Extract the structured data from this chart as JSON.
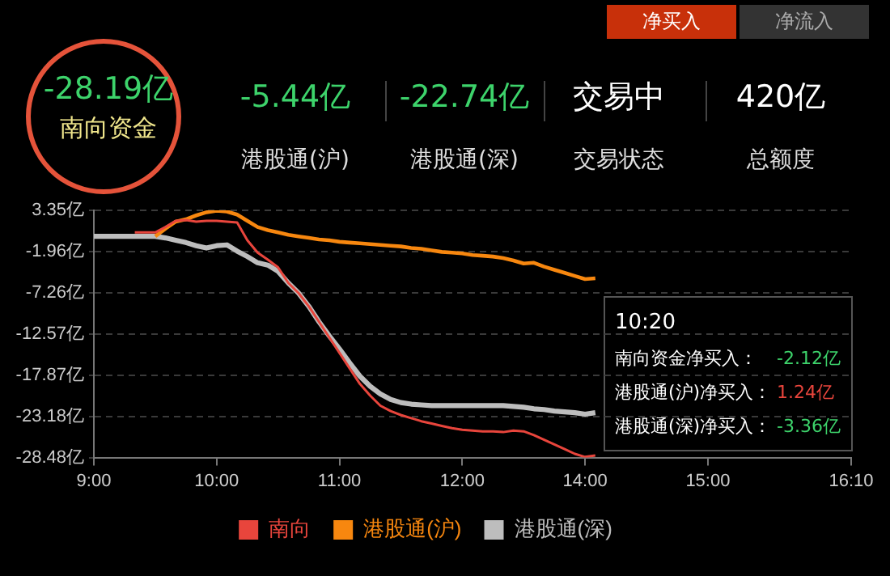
{
  "chart_data": {
    "type": "line",
    "categories": [
      "9:00",
      null,
      null,
      null,
      null,
      null,
      null,
      null,
      null,
      null,
      null,
      null,
      "10:00",
      null,
      null,
      null,
      null,
      null,
      null,
      null,
      null,
      null,
      null,
      null,
      "11:00",
      null,
      null,
      null,
      null,
      null,
      null,
      null,
      null,
      null,
      null,
      null,
      "12:00",
      null,
      null,
      null,
      null,
      null,
      null,
      null,
      null,
      null,
      null,
      null,
      "14:00",
      null,
      null,
      null,
      null,
      null,
      null,
      null,
      null,
      null,
      null,
      null,
      "15:00",
      null,
      null,
      null,
      null,
      null,
      null,
      null,
      null,
      null,
      null,
      null,
      null,
      null,
      "16:10"
    ],
    "series": [
      {
        "name": "南向",
        "color": "#e8453c",
        "values": [
          null,
          null,
          null,
          null,
          0.5,
          0.5,
          0.5,
          1.2,
          2.0,
          2.1,
          1.9,
          2.0,
          2.0,
          1.9,
          1.8,
          -0.5,
          -2.1,
          -3.0,
          -4.0,
          -6.0,
          -7.3,
          -9,
          -11,
          -13,
          -15,
          -17,
          -19,
          -20.5,
          -21.8,
          -22.5,
          -23.0,
          -23.4,
          -23.8,
          -24.1,
          -24.4,
          -24.7,
          -24.9,
          -25.0,
          -25.1,
          -25.1,
          -25.2,
          -25.0,
          -25.1,
          -25.6,
          -26.2,
          -26.8,
          -27.4,
          -28.0,
          -28.4,
          -28.2,
          null,
          null,
          null,
          null,
          null,
          null,
          null,
          null,
          null,
          null,
          null,
          null,
          null,
          null,
          null,
          null,
          null,
          null,
          null,
          null,
          null,
          null,
          null,
          null,
          null
        ]
      },
      {
        "name": "港股通(沪)",
        "color": "#f7870f",
        "values": [
          null,
          null,
          null,
          null,
          null,
          null,
          0,
          1.0,
          1.9,
          2.2,
          2.7,
          3.1,
          3.3,
          3.2,
          2.8,
          2.0,
          1.2,
          0.8,
          0.5,
          0.2,
          0,
          -0.2,
          -0.4,
          -0.5,
          -0.7,
          -0.8,
          -0.9,
          -1.0,
          -1.1,
          -1.2,
          -1.3,
          -1.5,
          -1.6,
          -1.8,
          -2.0,
          -2.1,
          -2.2,
          -2.4,
          -2.5,
          -2.6,
          -2.8,
          -3.1,
          -3.5,
          -3.4,
          -3.9,
          -4.3,
          -4.7,
          -5.1,
          -5.5,
          -5.4,
          null,
          null,
          null,
          null,
          null,
          null,
          null,
          null,
          null,
          null,
          null,
          null,
          null,
          null,
          null,
          null,
          null,
          null,
          null,
          null,
          null,
          null,
          null,
          null,
          null
        ]
      },
      {
        "name": "港股通(深)",
        "color": "#bdbdbd",
        "values": [
          0,
          0,
          0,
          0,
          0,
          0,
          0,
          -0.2,
          -0.5,
          -0.8,
          -1.2,
          -1.5,
          -1.2,
          -1.1,
          -1.9,
          -2.6,
          -3.4,
          -3.7,
          -4.5,
          -6.0,
          -7.3,
          -9,
          -11,
          -12.8,
          -14.5,
          -16.3,
          -18,
          -19.3,
          -20.3,
          -21.0,
          -21.4,
          -21.6,
          -21.7,
          -21.8,
          -21.8,
          -21.8,
          -21.8,
          -21.8,
          -21.8,
          -21.8,
          -21.8,
          -21.9,
          -22.0,
          -22.2,
          -22.3,
          -22.5,
          -22.6,
          -22.7,
          -22.9,
          -22.7,
          null,
          null,
          null,
          null,
          null,
          null,
          null,
          null,
          null,
          null,
          null,
          null,
          null,
          null,
          null,
          null,
          null,
          null,
          null,
          null,
          null,
          null,
          null,
          null,
          null
        ]
      }
    ],
    "ylim": [
      -28.48,
      3.35
    ],
    "yticks": [
      {
        "value": 3.35,
        "label": "3.35亿"
      },
      {
        "value": -1.96,
        "label": "-1.96亿"
      },
      {
        "value": -7.26,
        "label": "-7.26亿"
      },
      {
        "value": -12.57,
        "label": "-12.57亿"
      },
      {
        "value": -17.87,
        "label": "-17.87亿"
      },
      {
        "value": -23.18,
        "label": "-23.18亿"
      },
      {
        "value": -28.48,
        "label": "-28.48亿"
      }
    ],
    "grid": "y",
    "legend": "bottom",
    "marker": "none",
    "line_style": "solid",
    "annotations": [
      "净买入",
      "净流入",
      "-28.19亿",
      "南向资金",
      "-5.44亿",
      "港股通(沪)",
      "-22.74亿",
      "港股通(深)",
      "交易中",
      "交易状态",
      "420亿",
      "总额度",
      "10:20",
      "南向资金净买入：",
      "-2.12亿",
      "港股通(沪)净买入：",
      "1.24亿",
      "港股通(深)净买入：",
      "-3.36亿"
    ]
  }
}
